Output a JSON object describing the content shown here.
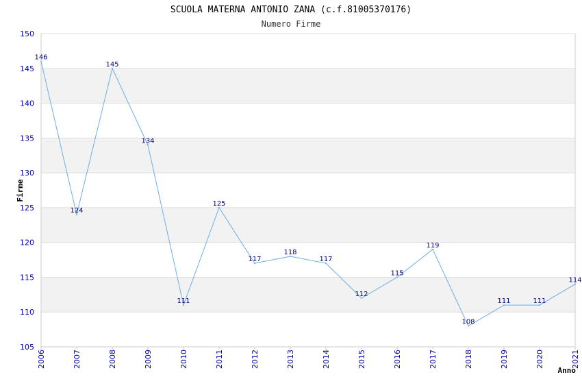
{
  "chart_data": {
    "type": "line",
    "title": "SCUOLA MATERNA ANTONIO ZANA (c.f.81005370176)",
    "subtitle": "Numero Firme",
    "xlabel": "Anno",
    "ylabel": "Firme",
    "x": [
      2006,
      2007,
      2008,
      2009,
      2010,
      2011,
      2012,
      2013,
      2014,
      2015,
      2016,
      2017,
      2018,
      2019,
      2020,
      2021
    ],
    "x_tick_labels": [
      "2006",
      "2007",
      "2008",
      "2009",
      "2010",
      "2011",
      "2012",
      "2013",
      "2014",
      "2015",
      "2016",
      "2017",
      "2018",
      "2019",
      "2020",
      "2021"
    ],
    "series": [
      {
        "values": [
          146,
          124,
          145,
          134,
          111,
          125,
          117,
          118,
          117,
          112,
          115,
          119,
          108,
          111,
          111,
          114
        ],
        "data_labels": [
          "146",
          "124",
          "145",
          "134",
          "111",
          "125",
          "117",
          "118",
          "117",
          "112",
          "115",
          "119",
          "108",
          "111",
          "111",
          "114"
        ]
      }
    ],
    "ylim": [
      105,
      150
    ],
    "y_ticks": [
      105,
      110,
      115,
      120,
      125,
      130,
      135,
      140,
      145,
      150
    ],
    "y_tick_labels": [
      "105",
      "110",
      "115",
      "120",
      "125",
      "130",
      "135",
      "140",
      "145",
      "150"
    ],
    "grid": "horizontal bands",
    "legend": "none",
    "colors": {
      "line": "#6aaee8",
      "tick_text": "#0000aa",
      "label_text": "#000080",
      "band": "#f2f2f2",
      "gridline": "#dddddd",
      "axis": "#cccccc"
    }
  }
}
